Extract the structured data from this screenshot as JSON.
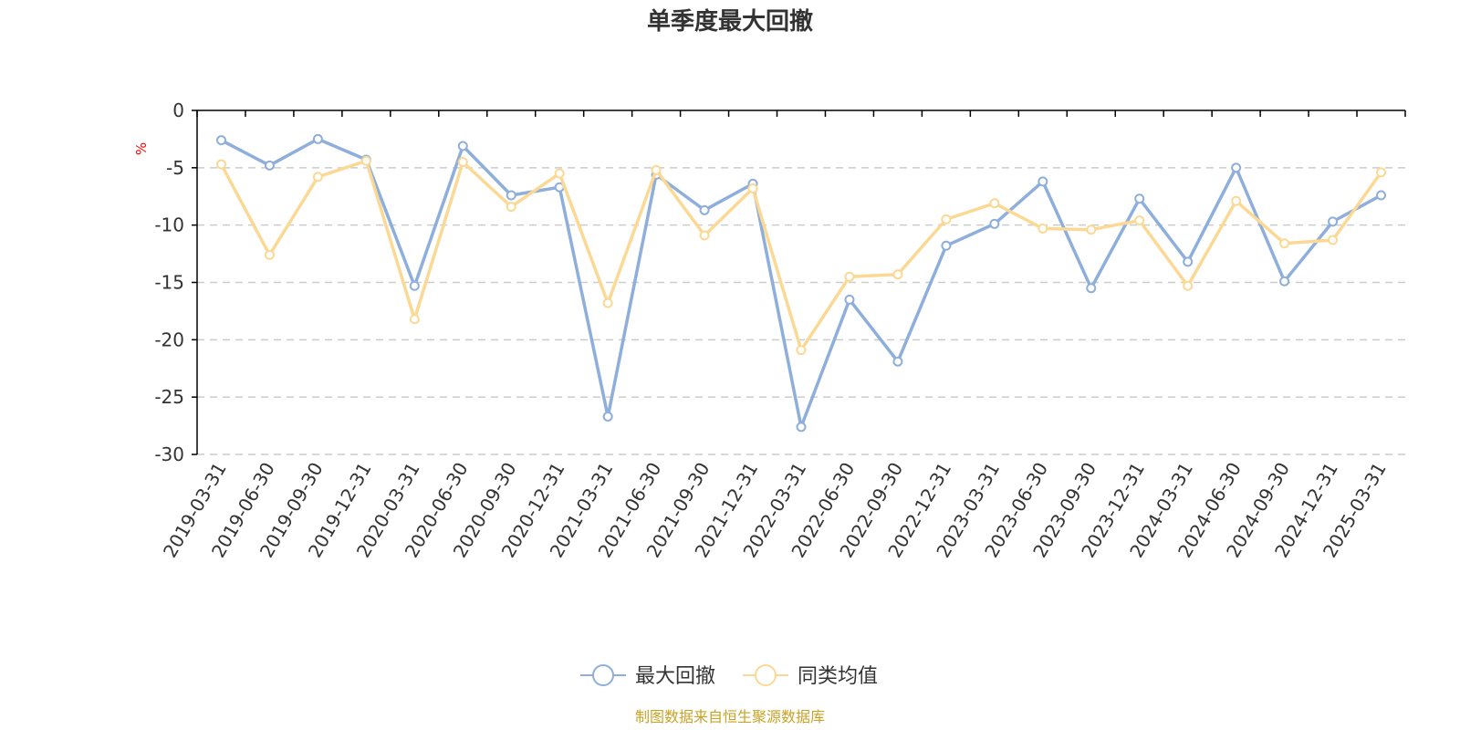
{
  "chart_data": {
    "type": "line",
    "title": "单季度最大回撤",
    "ylabel": "%",
    "ylim": [
      -30,
      0
    ],
    "yticks": [
      0,
      -5,
      -10,
      -15,
      -20,
      -25,
      -30
    ],
    "grid": true,
    "legend_position": "bottom",
    "categories": [
      "2019-03-31",
      "2019-06-30",
      "2019-09-30",
      "2019-12-31",
      "2020-03-31",
      "2020-06-30",
      "2020-09-30",
      "2020-12-31",
      "2021-03-31",
      "2021-06-30",
      "2021-09-30",
      "2021-12-31",
      "2022-03-31",
      "2022-06-30",
      "2022-09-30",
      "2022-12-31",
      "2023-03-31",
      "2023-06-30",
      "2023-09-30",
      "2023-12-31",
      "2024-03-31",
      "2024-06-30",
      "2024-09-30",
      "2024-12-31",
      "2025-03-31"
    ],
    "series": [
      {
        "name": "最大回撤",
        "color": "#8eaedb",
        "values": [
          -2.6,
          -4.8,
          -2.5,
          -4.3,
          -15.3,
          -3.1,
          -7.4,
          -6.7,
          -26.7,
          -5.6,
          -8.7,
          -6.4,
          -27.6,
          -16.5,
          -21.9,
          -11.8,
          -9.9,
          -6.2,
          -15.5,
          -7.7,
          -13.2,
          -5.0,
          -14.9,
          -9.7,
          -7.4
        ]
      },
      {
        "name": "同类均值",
        "color": "#fbd995",
        "values": [
          -4.7,
          -12.6,
          -5.8,
          -4.4,
          -18.2,
          -4.5,
          -8.4,
          -5.5,
          -16.8,
          -5.2,
          -10.9,
          -6.8,
          -20.9,
          -14.5,
          -14.3,
          -9.5,
          -8.1,
          -10.3,
          -10.4,
          -9.6,
          -15.3,
          -7.9,
          -11.6,
          -11.3,
          -5.4
        ]
      }
    ]
  },
  "source_text": "制图数据来自恒生聚源数据库",
  "colors": {
    "axis": "#000000",
    "grid": "#cccccc",
    "text": "#333333",
    "unit": "#ff0000",
    "source": "#c9a227"
  }
}
